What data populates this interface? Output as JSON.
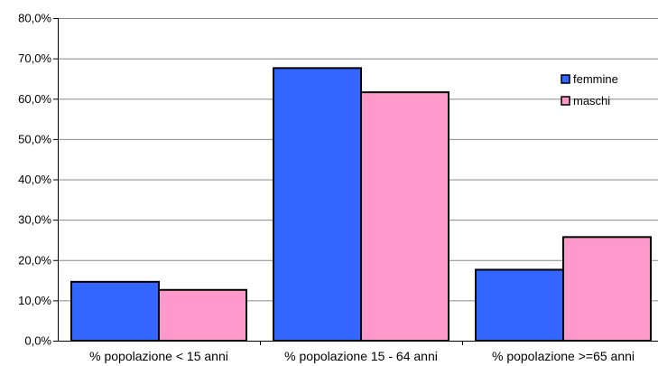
{
  "chart_data": {
    "type": "bar",
    "categories": [
      "% popolazione < 15 anni",
      "% popolazione 15 - 64 anni",
      "% popolazione >=65 anni"
    ],
    "series": [
      {
        "name": "femmine",
        "values": [
          14.6,
          67.6,
          17.6
        ],
        "color": "#3366ff"
      },
      {
        "name": "maschi",
        "values": [
          12.6,
          61.6,
          25.7
        ],
        "color": "#ff99cc"
      }
    ],
    "yticks": [
      "0,0%",
      "10,0%",
      "20,0%",
      "30,0%",
      "40,0%",
      "50,0%",
      "60,0%",
      "70,0%",
      "80,0%"
    ],
    "ylim": [
      0,
      80
    ],
    "grid": true,
    "legend": "right"
  }
}
